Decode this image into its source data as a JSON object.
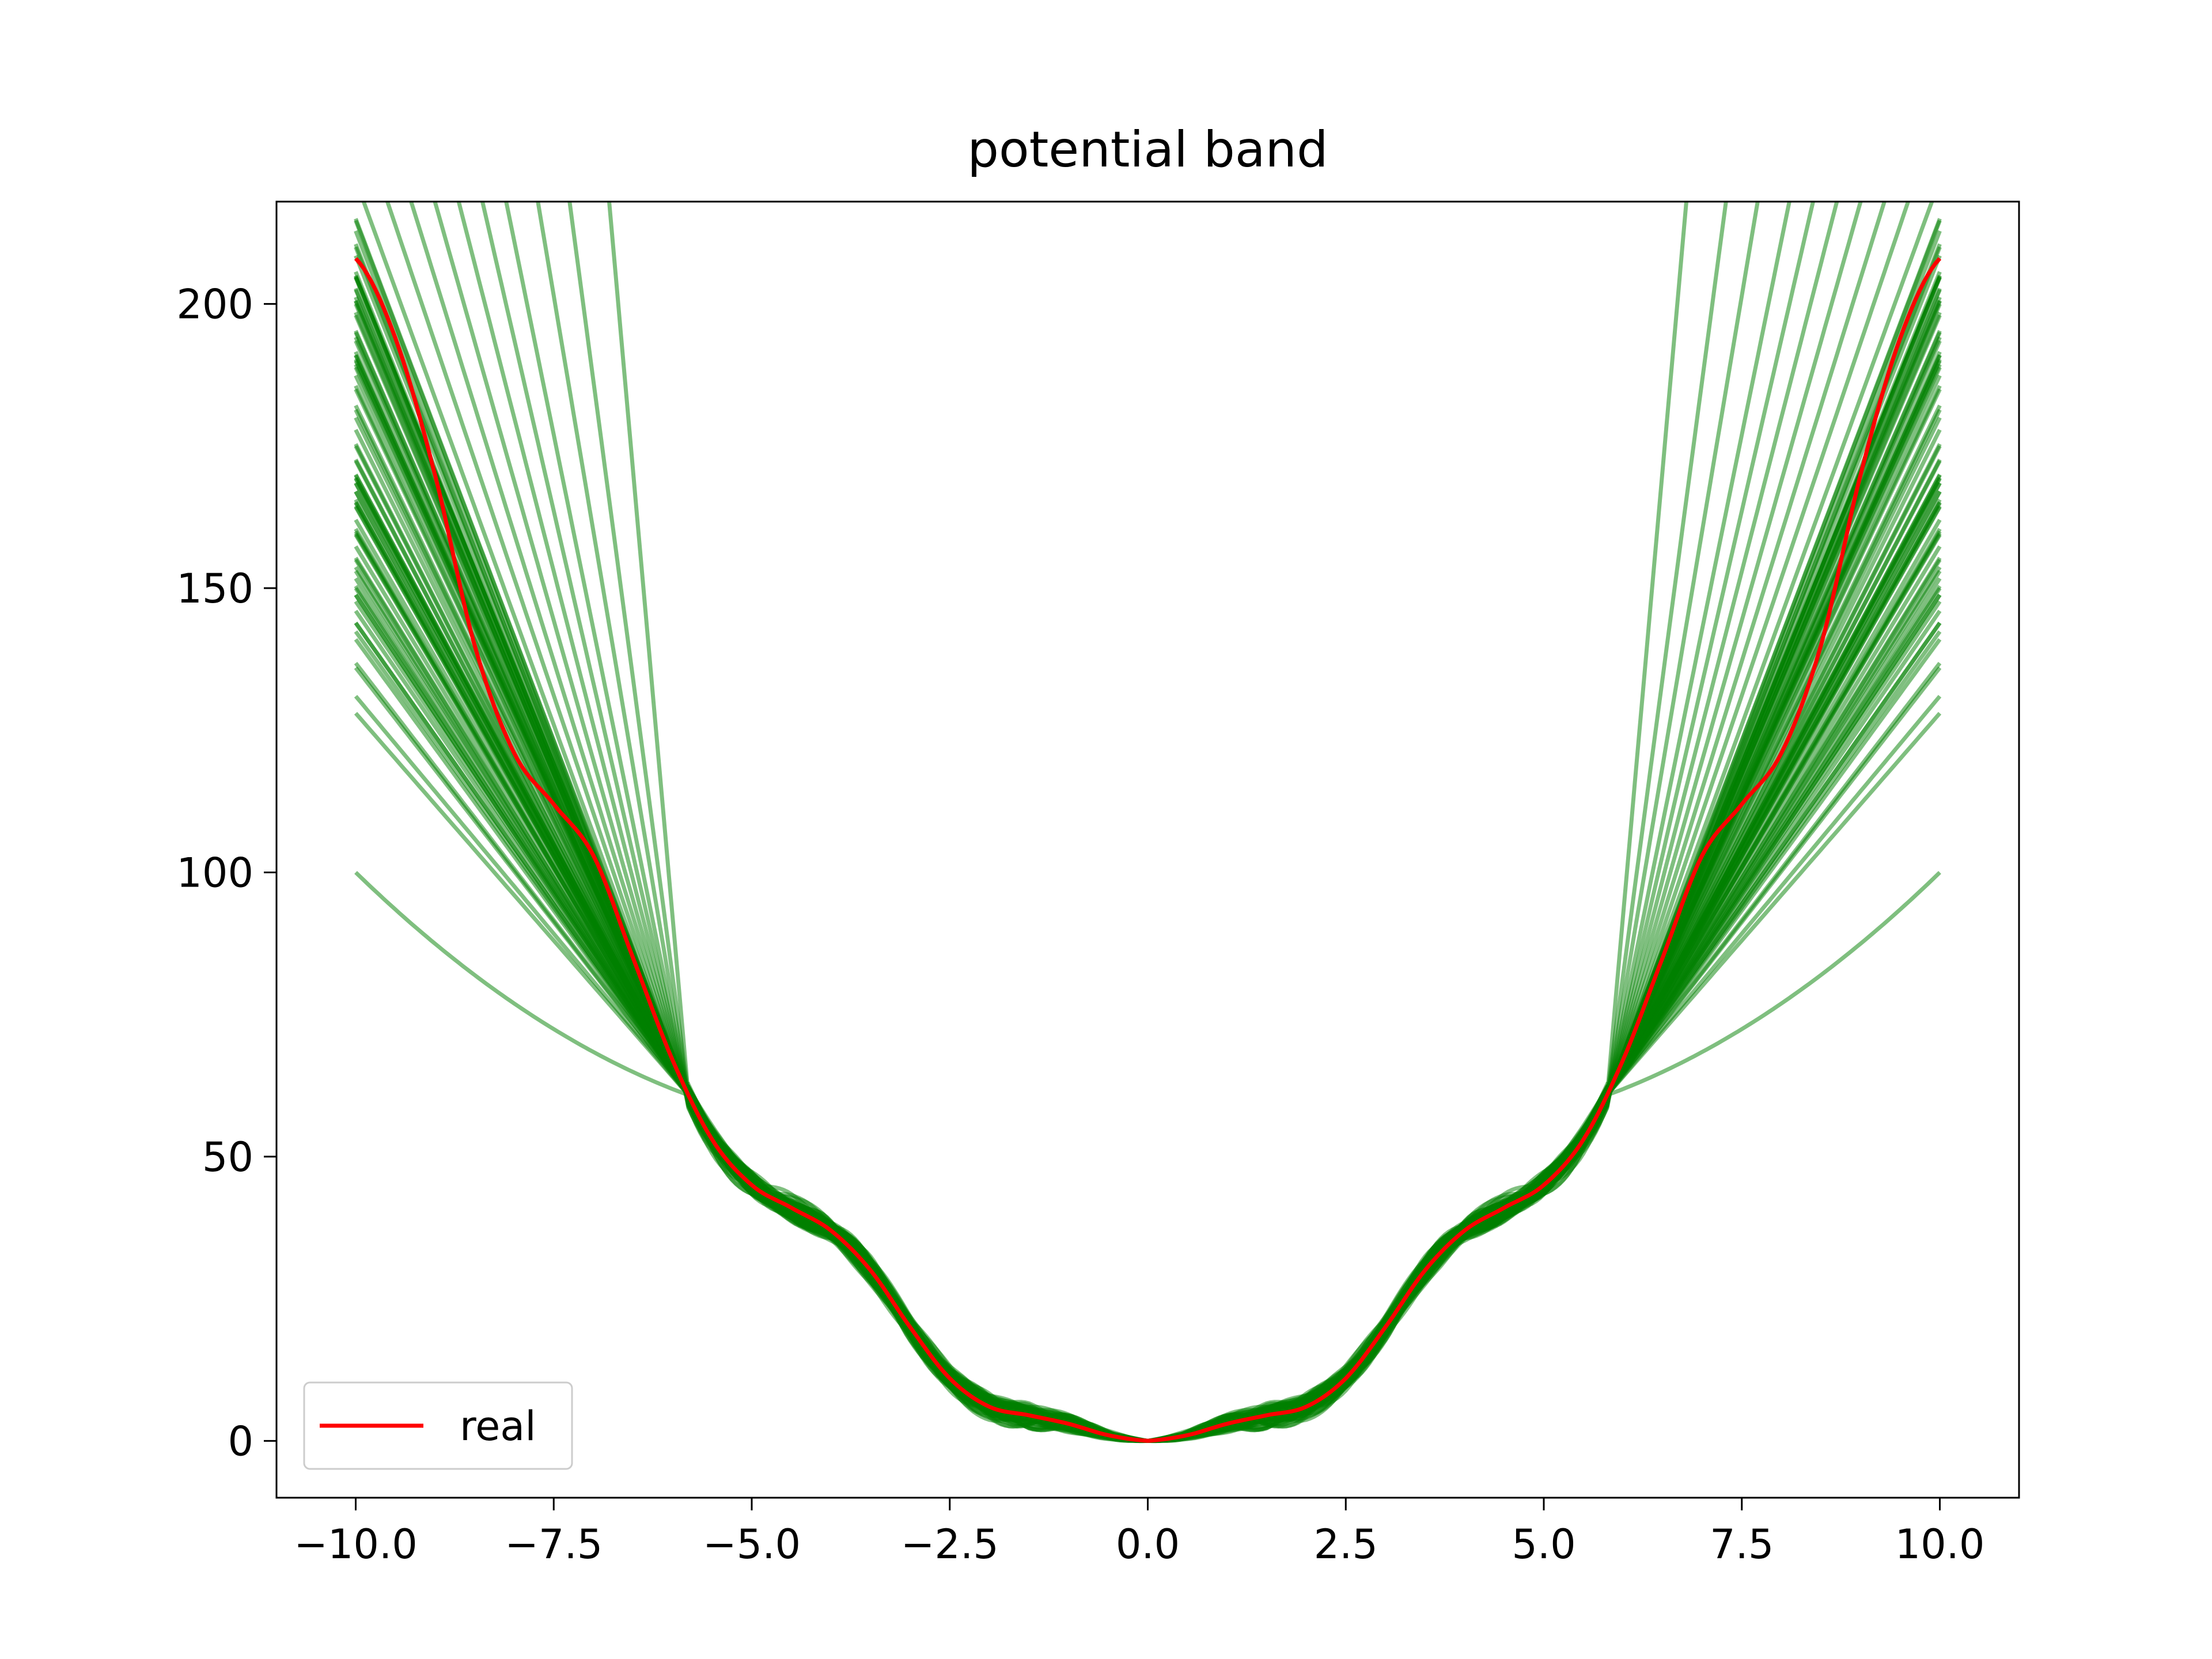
{
  "chart_data": {
    "type": "line",
    "title": "potential band",
    "xlabel": "",
    "ylabel": "",
    "xlim": [
      -11,
      11
    ],
    "ylim": [
      -10,
      218
    ],
    "x_ticks": [
      "−10.0",
      "−7.5",
      "−5.0",
      "−2.5",
      "0.0",
      "2.5",
      "5.0",
      "7.5",
      "10.0"
    ],
    "x_tick_values": [
      -10,
      -7.5,
      -5,
      -2.5,
      0,
      2.5,
      5,
      7.5,
      10
    ],
    "y_ticks": [
      "0",
      "50",
      "100",
      "150",
      "200"
    ],
    "y_tick_values": [
      0,
      50,
      100,
      150,
      200
    ],
    "grid": false,
    "legend": {
      "position": "lower-left",
      "entries": [
        {
          "label": "real",
          "color": "#ff0000"
        }
      ]
    },
    "colors": {
      "real": "#ff0000",
      "band": "#008000",
      "band_opacity": 0.5
    },
    "real_series": {
      "name": "real",
      "x": [
        0,
        0.5,
        1,
        1.5,
        2,
        2.5,
        3,
        3.5,
        4,
        4.5,
        5,
        5.5,
        6,
        6.5,
        7,
        7.5,
        8,
        8.5,
        9,
        9.5,
        10
      ],
      "y": [
        0,
        1,
        3,
        4.5,
        6,
        11,
        20,
        30,
        37,
        41,
        45,
        53,
        67,
        85,
        103,
        112,
        121,
        140,
        170,
        194,
        208
      ]
    },
    "band": {
      "description_values": "ensemble of fitted potential curves (green), symmetric in x",
      "outer_endpoint_values_at_x10": [
        100,
        128,
        131,
        136,
        141,
        146,
        150,
        155,
        160,
        165,
        170,
        175,
        180,
        185,
        190,
        195,
        200,
        205,
        210,
        215
      ],
      "steep_curves_crossing_top_at_x": [
        6.8,
        7.3,
        7.7,
        8.1,
        8.4,
        8.7,
        9.0,
        9.3,
        9.6,
        9.9
      ]
    }
  }
}
